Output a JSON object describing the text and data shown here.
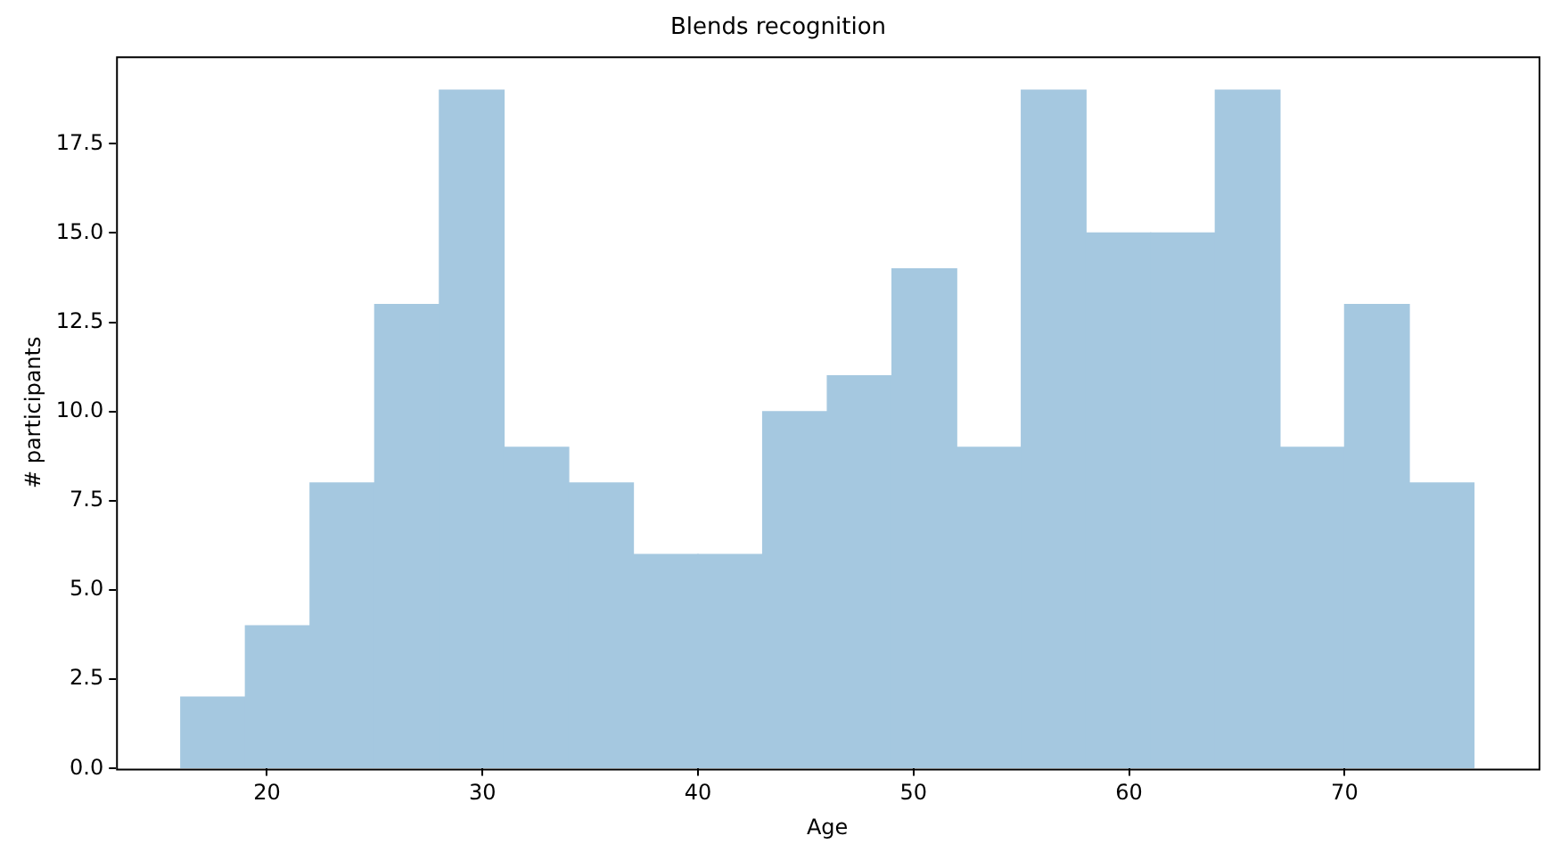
{
  "chart_data": {
    "type": "histogram",
    "title": "Blends recognition",
    "xlabel": "Age",
    "ylabel": "# participants",
    "bins": [
      16,
      19,
      22,
      25,
      28,
      31,
      34,
      37,
      40,
      43,
      46,
      49,
      52,
      55,
      58,
      61,
      64,
      67,
      70,
      73,
      76
    ],
    "values": [
      2,
      4,
      8,
      13,
      19,
      9,
      8,
      6,
      6,
      10,
      11,
      14,
      9,
      19,
      15,
      15,
      19,
      9,
      13,
      8
    ],
    "color": "#a5c8e0",
    "xlim": [
      13,
      79
    ],
    "xticks": [
      20,
      30,
      40,
      50,
      60,
      70
    ],
    "ylim": [
      0,
      19.95
    ],
    "yticks": [
      {
        "value": 0,
        "label": "0.0"
      },
      {
        "value": 2.5,
        "label": "2.5"
      },
      {
        "value": 5,
        "label": "5.0"
      },
      {
        "value": 7.5,
        "label": "7.5"
      },
      {
        "value": 10,
        "label": "10.0"
      },
      {
        "value": 12.5,
        "label": "12.5"
      },
      {
        "value": 15,
        "label": "15.0"
      },
      {
        "value": 17.5,
        "label": "17.5"
      }
    ],
    "grid": false,
    "legend": false
  }
}
